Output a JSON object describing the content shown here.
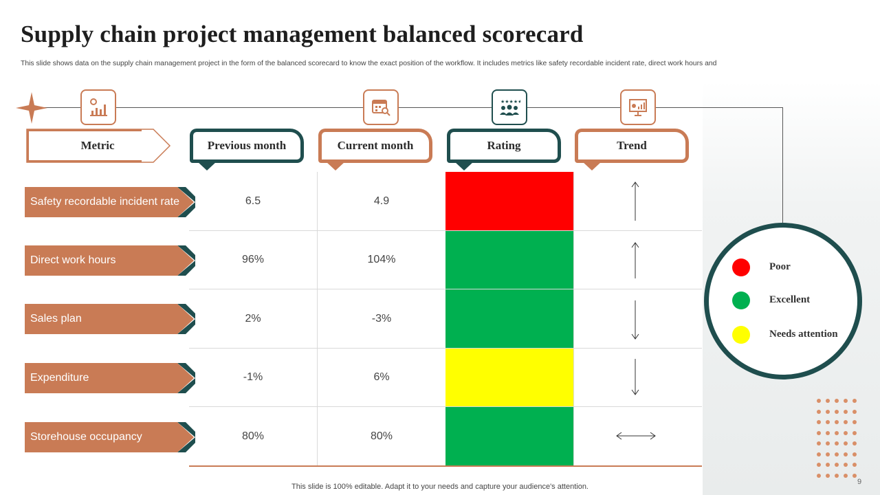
{
  "title": "Supply chain project management balanced scorecard",
  "subtitle": "This slide shows data on the supply chain management project in the form of the balanced scorecard to know the exact position of the workflow. It includes metrics like safety recordable incident rate, direct work hours and",
  "headers": {
    "metric": "Metric",
    "previous": "Previous month",
    "current": "Current month",
    "rating": "Rating",
    "trend": "Trend"
  },
  "icons": [
    "chart-icon",
    "calendar-search-icon",
    "team-rating-icon",
    "presentation-chart-icon"
  ],
  "rows": [
    {
      "metric": "Safety recordable incident rate",
      "previous": "6.5",
      "current": "4.9",
      "rating": "Poor",
      "rating_color": "#ff0000",
      "trend": "up"
    },
    {
      "metric": "Direct work hours",
      "previous": "96%",
      "current": "104%",
      "rating": "Excellent",
      "rating_color": "#00b050",
      "trend": "up"
    },
    {
      "metric": "Sales plan",
      "previous": "2%",
      "current": "-3%",
      "rating": "Excellent",
      "rating_color": "#00b050",
      "trend": "down"
    },
    {
      "metric": "Expenditure",
      "previous": "-1%",
      "current": "6%",
      "rating": "Needs attention",
      "rating_color": "#ffff00",
      "trend": "down"
    },
    {
      "metric": "Storehouse occupancy",
      "previous": "80%",
      "current": "80%",
      "rating": "Excellent",
      "rating_color": "#00b050",
      "trend": "flat"
    }
  ],
  "legend": [
    {
      "label": "Poor",
      "color": "#ff0000"
    },
    {
      "label": "Excellent",
      "color": "#00b050"
    },
    {
      "label": "Needs attention",
      "color": "#ffff00"
    }
  ],
  "colors": {
    "accent": "#c97b55",
    "dark": "#1f4e4e"
  },
  "footer": "This slide is 100% editable. Adapt it to your needs and capture your audience's attention.",
  "page_number": "9"
}
